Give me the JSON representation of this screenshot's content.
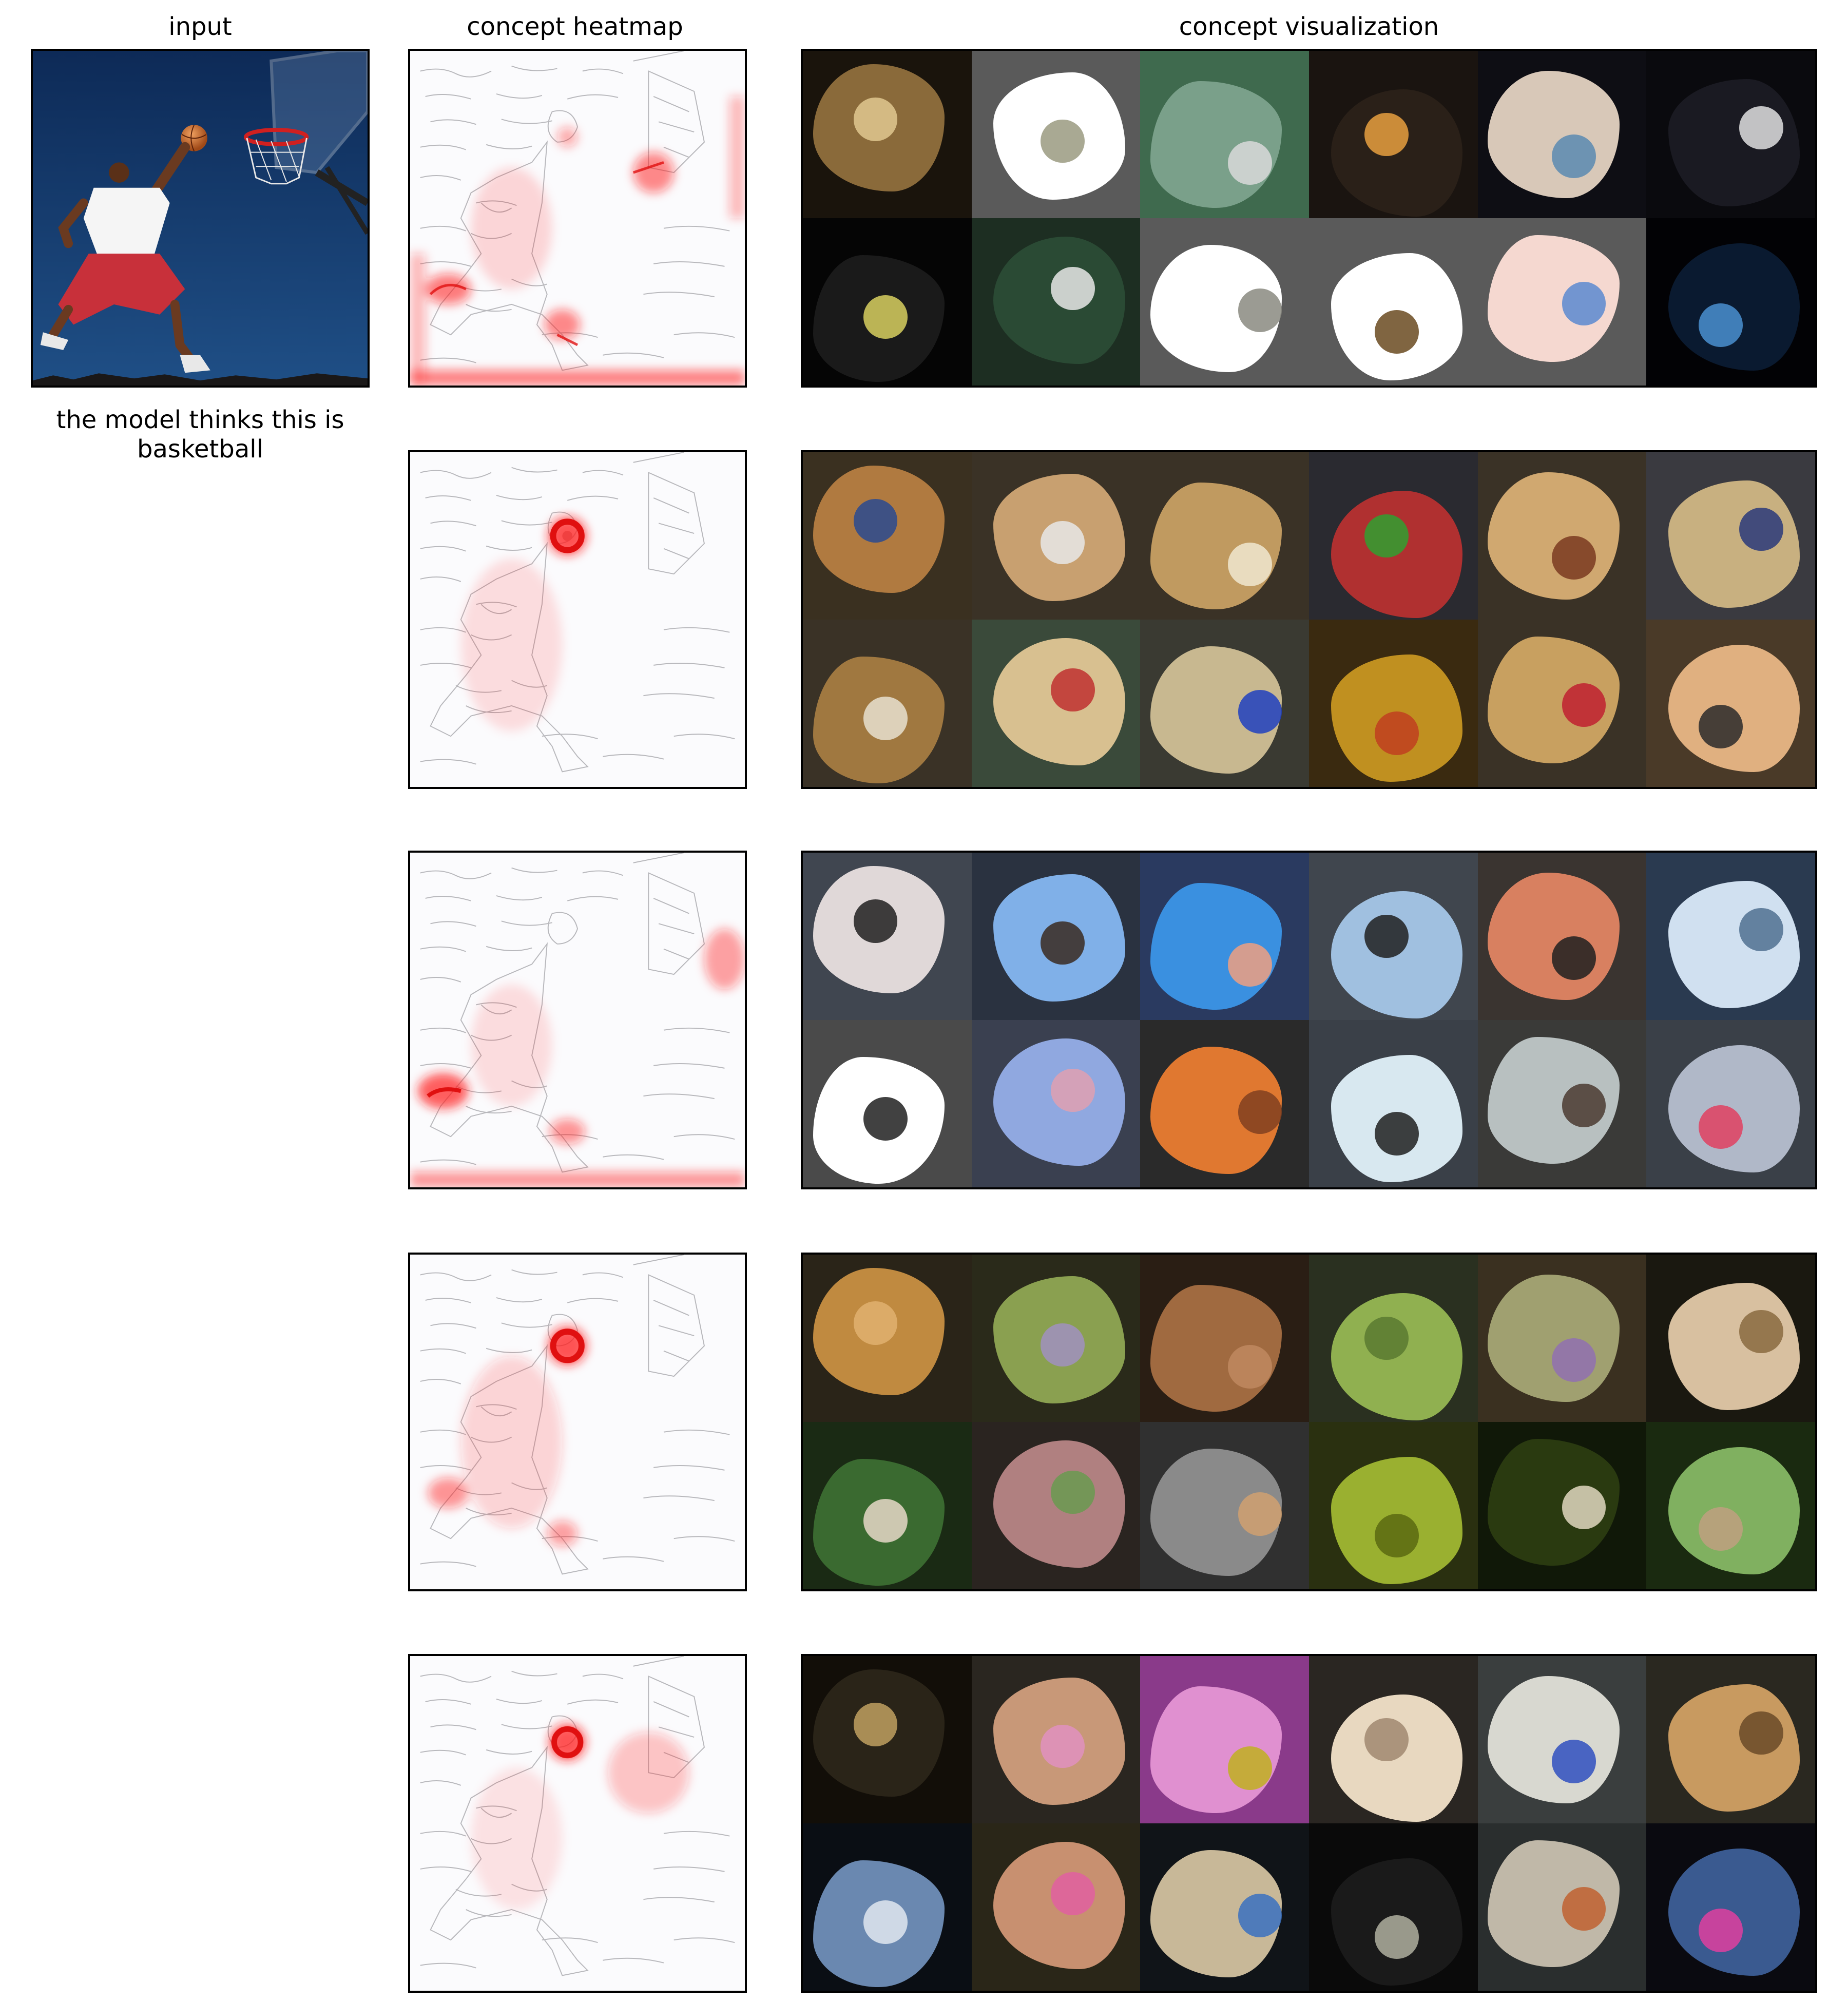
{
  "columns": {
    "input": "input",
    "heatmap": "concept heatmap",
    "visualization": "concept visualization"
  },
  "caption": "the model thinks this is basketball",
  "rows": [
    {
      "heatmap_hotspots": [
        "lower-left shoe",
        "right shoe",
        "ball",
        "hoop",
        "bottom edge"
      ],
      "tiles": [
        {
          "bg": "#1a140c",
          "mask": "#8a6a3a",
          "accent": "#e0c890"
        },
        {
          "bg": "#5a5a5a",
          "mask": "#ffffff",
          "accent": "#9a9a80"
        },
        {
          "bg": "#3f6a4e",
          "mask": "#7aa08a",
          "accent": "#d9d9d9"
        },
        {
          "bg": "#1a1410",
          "mask": "#2a2018",
          "accent": "#e8a040"
        },
        {
          "bg": "#0e0e14",
          "mask": "#d8c8b8",
          "accent": "#5a8ab0"
        },
        {
          "bg": "#0a0a0e",
          "mask": "#1a1a22",
          "accent": "#e0e0e0"
        },
        {
          "bg": "#050505",
          "mask": "#1a1a1a",
          "accent": "#d8d060"
        },
        {
          "bg": "#1d2e22",
          "mask": "#2a4a34",
          "accent": "#e8e8e8"
        },
        {
          "bg": "#5a5a5a",
          "mask": "#ffffff",
          "accent": "#8a8a80"
        },
        {
          "bg": "#5a5a5a",
          "mask": "#ffffff",
          "accent": "#6a4a20"
        },
        {
          "bg": "#5a5a5a",
          "mask": "#f5d8d0",
          "accent": "#5a8ad0"
        },
        {
          "bg": "#020205",
          "mask": "#0a1a30",
          "accent": "#4a90d0"
        }
      ]
    },
    {
      "heatmap_hotspots": [
        "ball"
      ],
      "tiles": [
        {
          "bg": "#3a3020",
          "mask": "#b07a40",
          "accent": "#2a4a90"
        },
        {
          "bg": "#3a3226",
          "mask": "#c8a070",
          "accent": "#e8e8e8"
        },
        {
          "bg": "#3a3226",
          "mask": "#c09a60",
          "accent": "#f0e8d0"
        },
        {
          "bg": "#2a2a30",
          "mask": "#b03030",
          "accent": "#30a030"
        },
        {
          "bg": "#3a3226",
          "mask": "#d0a870",
          "accent": "#7a3a20"
        },
        {
          "bg": "#3a3a40",
          "mask": "#c8b080",
          "accent": "#2a3a7a"
        },
        {
          "bg": "#3a3226",
          "mask": "#a07840",
          "accent": "#e8e0d0"
        },
        {
          "bg": "#3a4a3a",
          "mask": "#d8c090",
          "accent": "#c03030"
        },
        {
          "bg": "#3a3a32",
          "mask": "#c8b890",
          "accent": "#2040c0"
        },
        {
          "bg": "#3a2a10",
          "mask": "#c09020",
          "accent": "#c04020"
        },
        {
          "bg": "#3a3226",
          "mask": "#c8a060",
          "accent": "#c02030"
        },
        {
          "bg": "#4a3a28",
          "mask": "#e0b080",
          "accent": "#2a2a2a"
        }
      ]
    },
    {
      "heatmap_hotspots": [
        "lower-left shoe",
        "right shoe",
        "bottom edge",
        "hoop"
      ],
      "tiles": [
        {
          "bg": "#404650",
          "mask": "#e0d8d8",
          "accent": "#202020"
        },
        {
          "bg": "#2a3240",
          "mask": "#80b0e8",
          "accent": "#3a2a20"
        },
        {
          "bg": "#2a3a60",
          "mask": "#3a90e0",
          "accent": "#f0a080"
        },
        {
          "bg": "#40464e",
          "mask": "#a0c0e0",
          "accent": "#202020"
        },
        {
          "bg": "#3a3430",
          "mask": "#d88060",
          "accent": "#202020"
        },
        {
          "bg": "#2a3a50",
          "mask": "#d0e0f0",
          "accent": "#507090"
        },
        {
          "bg": "#4a4a4a",
          "mask": "#ffffff",
          "accent": "#202020"
        },
        {
          "bg": "#3a4050",
          "mask": "#90a8e0",
          "accent": "#e0a0b0"
        },
        {
          "bg": "#2a2a2a",
          "mask": "#e07830",
          "accent": "#804020"
        },
        {
          "bg": "#3a4048",
          "mask": "#d8e8f0",
          "accent": "#202020"
        },
        {
          "bg": "#3a3a38",
          "mask": "#b8c0c0",
          "accent": "#4a3a30"
        },
        {
          "bg": "#3a4048",
          "mask": "#b0b8c8",
          "accent": "#e04060"
        }
      ]
    },
    {
      "heatmap_hotspots": [
        "ball",
        "lower-left shoe",
        "right shoe"
      ],
      "tiles": [
        {
          "bg": "#2a2418",
          "mask": "#c08a40",
          "accent": "#e0b070"
        },
        {
          "bg": "#2a2a1a",
          "mask": "#8aa050",
          "accent": "#a090c0"
        },
        {
          "bg": "#2a1e14",
          "mask": "#a06a40",
          "accent": "#c08860"
        },
        {
          "bg": "#2a3020",
          "mask": "#90b050",
          "accent": "#5a7a30"
        },
        {
          "bg": "#3a3020",
          "mask": "#a0a070",
          "accent": "#9070b0"
        },
        {
          "bg": "#1a1810",
          "mask": "#d8c0a0",
          "accent": "#8a6a40"
        },
        {
          "bg": "#1a2a14",
          "mask": "#3a6a30",
          "accent": "#e8d8c8"
        },
        {
          "bg": "#2a2420",
          "mask": "#b08080",
          "accent": "#6a9a50"
        },
        {
          "bg": "#303030",
          "mask": "#8a8a8a",
          "accent": "#d0a070"
        },
        {
          "bg": "#2a3010",
          "mask": "#9ab030",
          "accent": "#5a6a10"
        },
        {
          "bg": "#101808",
          "mask": "#2a3a10",
          "accent": "#e0d8c0"
        },
        {
          "bg": "#1a2a10",
          "mask": "#80b060",
          "accent": "#c0a080"
        }
      ]
    },
    {
      "heatmap_hotspots": [
        "ball",
        "hoop"
      ],
      "tiles": [
        {
          "bg": "#120e08",
          "mask": "#2a2418",
          "accent": "#c0a060"
        },
        {
          "bg": "#2a2620",
          "mask": "#c89878",
          "accent": "#e090c0"
        },
        {
          "bg": "#8a3a8a",
          "mask": "#e090d0",
          "accent": "#c0b020"
        },
        {
          "bg": "#2a2622",
          "mask": "#e8d8c0",
          "accent": "#a08870"
        },
        {
          "bg": "#3a3e3e",
          "mask": "#d8d8d0",
          "accent": "#3050c0"
        },
        {
          "bg": "#2a2820",
          "mask": "#c89a60",
          "accent": "#6a4a28"
        },
        {
          "bg": "#0a0e14",
          "mask": "#6a88b0",
          "accent": "#e0e8f0"
        },
        {
          "bg": "#2a2618",
          "mask": "#c89070",
          "accent": "#e060a0"
        },
        {
          "bg": "#101418",
          "mask": "#c8b898",
          "accent": "#3a70c0"
        },
        {
          "bg": "#0a0a0a",
          "mask": "#1a1a1a",
          "accent": "#b0b0a0"
        },
        {
          "bg": "#2a2e2e",
          "mask": "#c0b8a8",
          "accent": "#c06030"
        },
        {
          "bg": "#0a0a10",
          "mask": "#3a5a90",
          "accent": "#e040a0"
        }
      ]
    }
  ]
}
